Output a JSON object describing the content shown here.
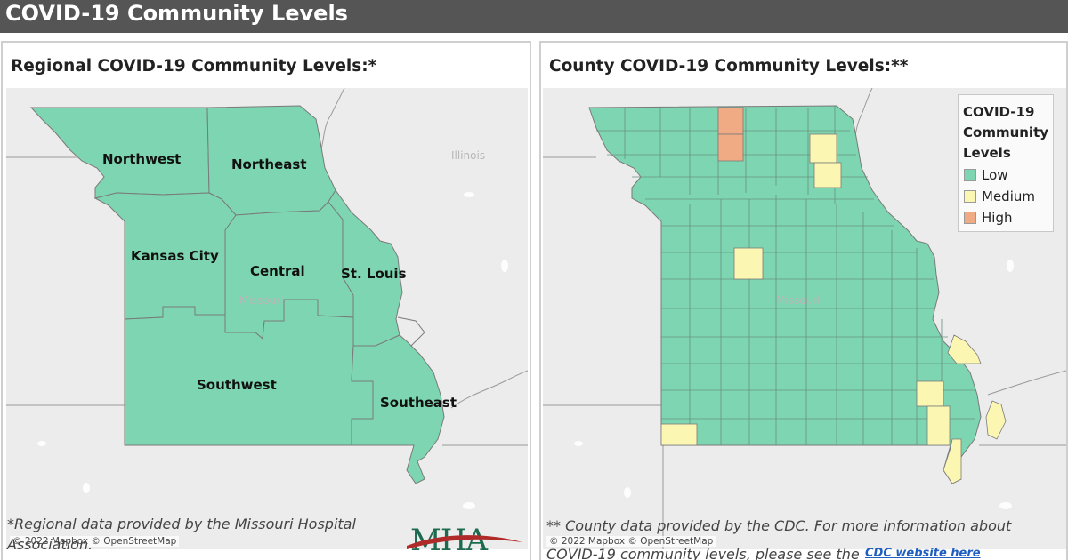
{
  "header": {
    "title": "COVID-19 Community Levels"
  },
  "colors": {
    "low": "#7dd6b1",
    "medium": "#fbf7b3",
    "high": "#f0ab85",
    "header_bg": "#555555",
    "link": "#1f5fbf",
    "mha_green": "#1e6a4f",
    "mha_red": "#b12a2a"
  },
  "regional": {
    "title": "Regional COVID-19 Community Levels:*",
    "attribution": "© 2022 Mapbox  © OpenStreetMap",
    "state_labels": {
      "illinois": "Illinois",
      "missouri": "Missouri"
    },
    "regions": [
      {
        "name": "Northwest",
        "level": "Low"
      },
      {
        "name": "Northeast",
        "level": "Low"
      },
      {
        "name": "Kansas City",
        "level": "Low"
      },
      {
        "name": "Central",
        "level": "Low"
      },
      {
        "name": "St. Louis",
        "level": "Low"
      },
      {
        "name": "Southwest",
        "level": "Low"
      },
      {
        "name": "Southeast",
        "level": "Low"
      }
    ],
    "footnote_line1": "*Regional data provided by the Missouri Hospital",
    "footnote_line2": "Association.",
    "logo_text": "MHA"
  },
  "county": {
    "title": "County COVID-19 Community Levels:**",
    "attribution": "© 2022 Mapbox  © OpenStreetMap",
    "state_labels": {
      "missouri": "Missouri"
    },
    "legend": {
      "title_lines": [
        "COVID-19",
        "Community",
        "Levels"
      ],
      "items": [
        {
          "label": "Low",
          "color": "#7dd6b1"
        },
        {
          "label": "Medium",
          "color": "#fbf7b3"
        },
        {
          "label": "High",
          "color": "#f0ab85"
        }
      ]
    },
    "footnote_line1": "** County data provided by the CDC. For  more information about",
    "footnote_line2": "COVID-19 community levels, please see the",
    "link_text": "CDC website here"
  }
}
